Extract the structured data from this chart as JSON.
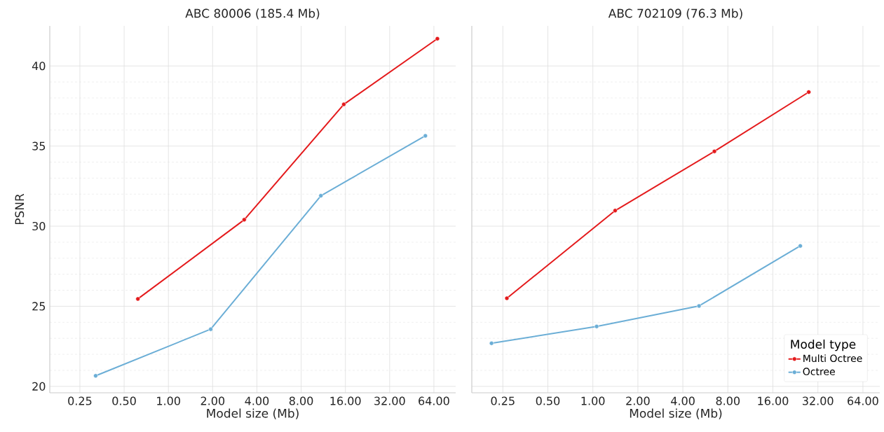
{
  "chart_data": [
    {
      "type": "line",
      "title": "ABC 80006 (185.4 Mb)",
      "xlabel": "Model size (Mb)",
      "ylabel": "PSNR",
      "log": "x",
      "grid": true,
      "marker": "circle",
      "legend": false,
      "xlim": [
        0.156,
        90
      ],
      "ylim": [
        19.6,
        42.5
      ],
      "xticks": [
        {
          "value": 0.25,
          "label": "0.25"
        },
        {
          "value": 0.5,
          "label": "0.50"
        },
        {
          "value": 1,
          "label": "1.00"
        },
        {
          "value": 2,
          "label": "2.00"
        },
        {
          "value": 4,
          "label": "4.00"
        },
        {
          "value": 8,
          "label": "8.00"
        },
        {
          "value": 16,
          "label": "16.00"
        },
        {
          "value": 32,
          "label": "32.00"
        },
        {
          "value": 64,
          "label": "64.00"
        }
      ],
      "yticks": [
        20,
        25,
        30,
        35,
        40
      ],
      "series": [
        {
          "color": "#e41a1c",
          "x": [
            0.62,
            3.28,
            15.6,
            67.6
          ],
          "values": [
            25.46,
            30.4,
            37.6,
            41.7
          ]
        },
        {
          "color": "#6baed6",
          "x": [
            0.32,
            1.94,
            10.9,
            56
          ],
          "values": [
            20.66,
            23.57,
            31.9,
            35.64
          ]
        }
      ]
    },
    {
      "type": "line",
      "title": "ABC 702109 (76.3 Mb)",
      "xlabel": "Model size (Mb)",
      "log": "x",
      "grid": true,
      "marker": "circle",
      "legend": "bottom right",
      "legend_title": "Model type",
      "tick_labels": "x",
      "xlim": [
        0.155,
        83
      ],
      "ylim": [
        19.6,
        42.5
      ],
      "xticks": [
        {
          "value": 0.25,
          "label": "0.25"
        },
        {
          "value": 0.5,
          "label": "0.50"
        },
        {
          "value": 1,
          "label": "1.00"
        },
        {
          "value": 2,
          "label": "2.00"
        },
        {
          "value": 4,
          "label": "4.00"
        },
        {
          "value": 8,
          "label": "8.00"
        },
        {
          "value": 16,
          "label": "16.00"
        },
        {
          "value": 32,
          "label": "32.00"
        },
        {
          "value": 64,
          "label": "64.00"
        }
      ],
      "yticks": [
        20,
        25,
        30,
        35,
        40
      ],
      "series": [
        {
          "name": "Multi Octree",
          "color": "#e41a1c",
          "x": [
            0.266,
            1.41,
            6.5,
            27.8
          ],
          "values": [
            25.5,
            30.97,
            34.67,
            38.37
          ]
        },
        {
          "name": "Octree",
          "color": "#6baed6",
          "x": [
            0.21,
            1.06,
            5.13,
            24.4
          ],
          "values": [
            22.69,
            23.74,
            25.02,
            28.77
          ]
        }
      ]
    }
  ]
}
